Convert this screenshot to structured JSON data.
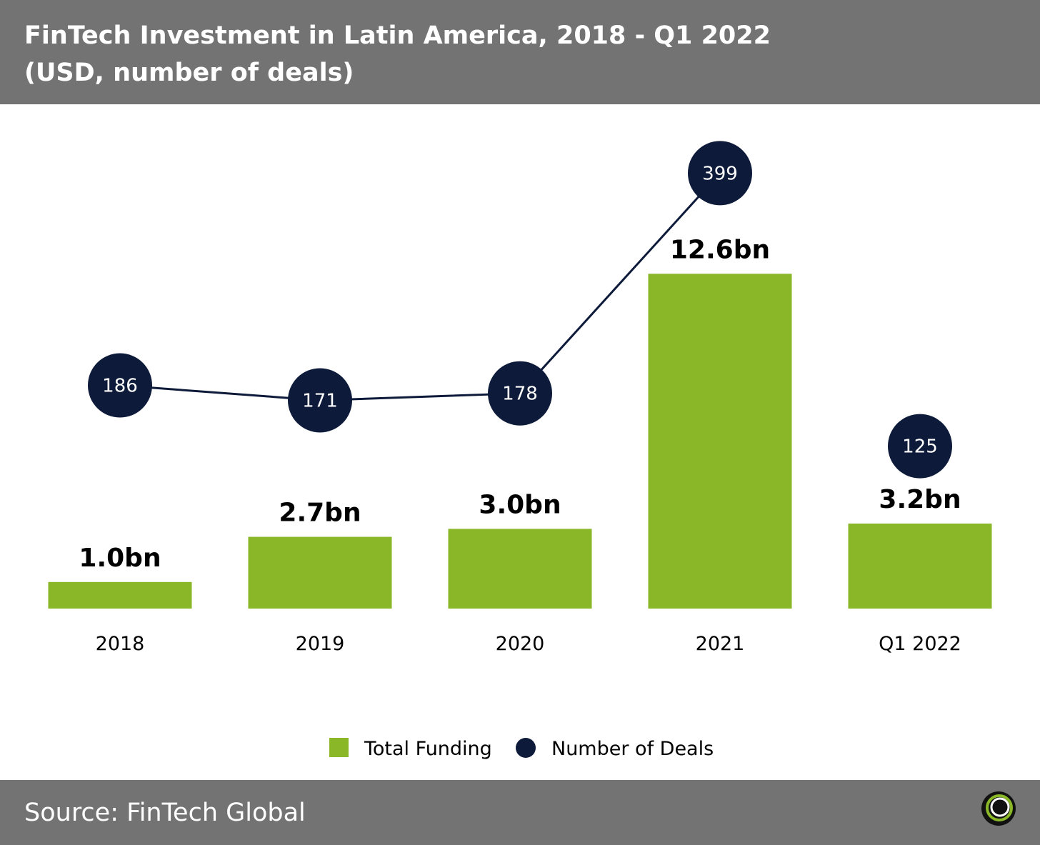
{
  "header": {
    "title": "FinTech Investment in Latin America, 2018 - Q1 2022",
    "subtitle": "(USD, number of deals)"
  },
  "footer": {
    "source": "Source: FinTech Global"
  },
  "colors": {
    "header_bg": "#737373",
    "bar": "#8ab728",
    "deal_marker": "#0d1a3a",
    "text": "#000000"
  },
  "chart_data": {
    "type": "bar",
    "categories": [
      "2018",
      "2019",
      "2020",
      "2021",
      "Q1 2022"
    ],
    "series": [
      {
        "name": "Total Funding",
        "type": "bar",
        "values": [
          1.0,
          2.7,
          3.0,
          12.6,
          3.2
        ],
        "labels": [
          "1.0bn",
          "2.7bn",
          "3.0bn",
          "12.6bn",
          "3.2bn"
        ],
        "color": "#8ab728"
      },
      {
        "name": "Number of Deals",
        "type": "line",
        "values": [
          186,
          171,
          178,
          399,
          125
        ],
        "labels": [
          "186",
          "171",
          "178",
          "399",
          "125"
        ],
        "connected_through": "2021",
        "color": "#0d1a3a"
      }
    ],
    "legend": {
      "position": "bottom-center",
      "items": [
        {
          "label": "Total Funding",
          "marker": "square",
          "color": "#8ab728"
        },
        {
          "label": "Number of Deals",
          "marker": "circle",
          "color": "#0d1a3a"
        }
      ]
    },
    "grid": false
  }
}
